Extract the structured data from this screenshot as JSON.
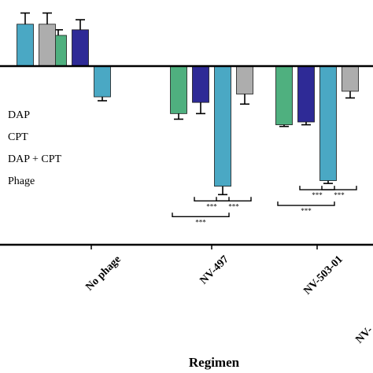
{
  "chart_data": {
    "type": "bar",
    "xlabel": "Regimen",
    "ylabel": "",
    "categories": [
      "",
      "No phage",
      "NV-497",
      "NV-503-01",
      "NV-"
    ],
    "legend": {
      "placement": "left",
      "entries": [
        "DAP",
        "CPT",
        "DAP + CPT",
        "Phage"
      ]
    },
    "ylim": [
      -3.2,
      1.2
    ],
    "series": [
      {
        "name": "DAP",
        "color": "#4fb07f",
        "values": [
          null,
          0.55,
          -0.85,
          -1.05,
          null
        ],
        "errors": [
          null,
          0.1,
          0.1,
          0.03,
          null
        ]
      },
      {
        "name": "CPT",
        "color": "#2e2a96",
        "values": [
          null,
          0.65,
          -0.65,
          -1.0,
          null
        ],
        "errors": [
          null,
          0.18,
          0.2,
          0.05,
          null
        ]
      },
      {
        "name": "DAP + CPT",
        "color": "#4aa8c4",
        "values": [
          0.75,
          -0.55,
          -2.15,
          -2.05,
          null
        ],
        "errors": [
          0.2,
          0.07,
          0.15,
          0.05,
          null
        ]
      },
      {
        "name": "Phage",
        "color": "#adadad",
        "values": [
          0.75,
          null,
          -0.5,
          -0.45,
          null
        ],
        "errors": [
          0.2,
          null,
          0.18,
          0.12,
          null
        ]
      }
    ],
    "significance": [
      {
        "group": "NV-497",
        "from": "CPT",
        "to": "DAP + CPT",
        "label": "***"
      },
      {
        "group": "NV-497",
        "from": "DAP + CPT",
        "to": "Phage",
        "label": "***"
      },
      {
        "group": "NV-497",
        "from": "DAP",
        "to": "DAP + CPT",
        "label": "***"
      },
      {
        "group": "NV-503-01",
        "from": "CPT",
        "to": "DAP + CPT",
        "label": "***"
      },
      {
        "group": "NV-503-01",
        "from": "DAP + CPT",
        "to": "Phage",
        "label": "***"
      },
      {
        "group": "NV-503-01",
        "from": "DAP",
        "to": "DAP + CPT",
        "label": "***"
      }
    ]
  }
}
